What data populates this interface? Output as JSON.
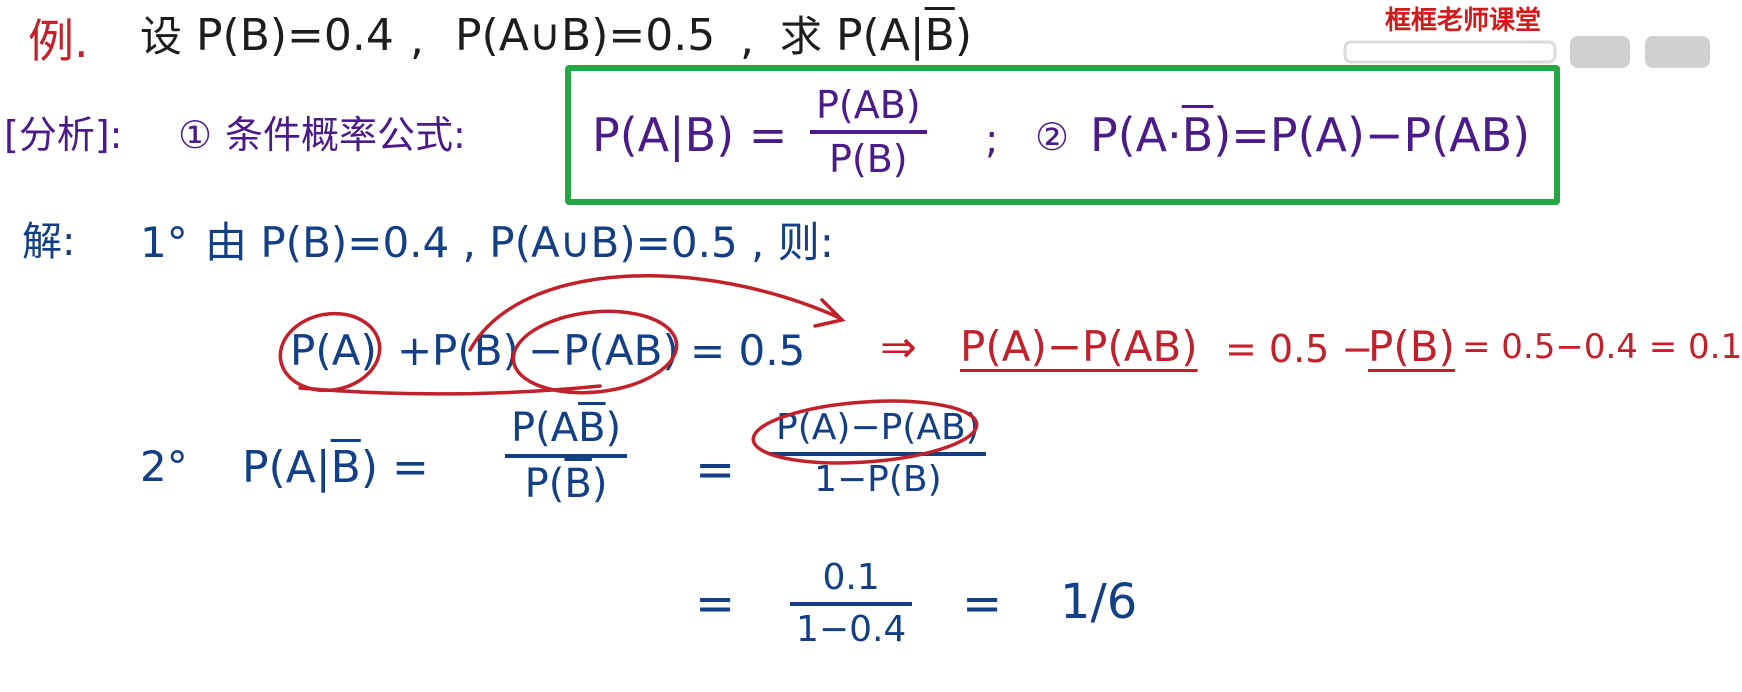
{
  "watermark": {
    "text": "框框老师课堂"
  },
  "example": {
    "label": "例.",
    "prefix": "设",
    "given_pb": "P(B)=0.4",
    "sep1": ",",
    "given_paub": "P(A∪B)=0.5",
    "sep2": ",",
    "ask_prefix": "求",
    "ask_expr_main": "P(A|",
    "ask_expr_bbar": "B",
    "ask_expr_close": ")"
  },
  "analysis": {
    "label": "[分析]:",
    "item1_marker": "①",
    "item1_text": "条件概率公式:",
    "formula_left": "P(A|B) =",
    "formula_num": "P(AB)",
    "formula_den": "P(B)",
    "semicolon": ";",
    "item2_marker": "②",
    "item2_left_main": "P(A·",
    "item2_left_bbar": "B",
    "item2_right": ")=P(A)−P(AB)"
  },
  "solution": {
    "label": "解:",
    "step1_marker": "1°",
    "step1_text": "由 P(B)=0.4 , P(A∪B)=0.5 , 则:",
    "eq_term_pa": "P(A)",
    "eq_plus": "+",
    "eq_term_pb": "P(B)",
    "eq_term_minus_pab": "−P(AB)",
    "eq_rhs": "= 0.5",
    "implies": "⇒",
    "red_pa_minus_pab": "P(A)−P(AB)",
    "red_eq1": "= 0.5 −",
    "red_pb": "P(B)",
    "red_eq2": "= 0.5−0.4 = 0.1",
    "step2_marker": "2°",
    "step2_left_main": "P(A|",
    "step2_left_bbar": "B",
    "step2_left_close": ") =",
    "frac1_num_main": "P(A",
    "frac1_num_bbar": "B",
    "frac1_num_close": ")",
    "frac1_den_main": "P(",
    "frac1_den_bbar": "B",
    "frac1_den_close": ")",
    "eq2": "=",
    "frac2_num": "P(A)−P(AB)",
    "frac2_den": "1−P(B)",
    "eq3": "=",
    "frac3_num": "0.1",
    "frac3_den": "1−0.4",
    "eq4": "=",
    "result": "1/6"
  }
}
